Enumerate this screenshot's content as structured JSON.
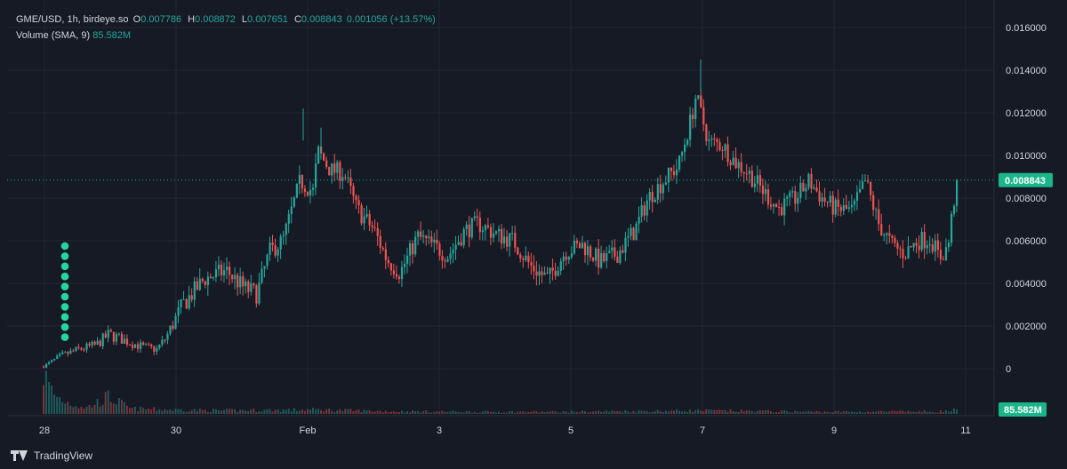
{
  "legend": {
    "symbol": "GME/USD, 1h, birdeye.so",
    "open_key": "O",
    "open": "0.007786",
    "high_key": "H",
    "high": "0.008872",
    "low_key": "L",
    "low": "0.007651",
    "close_key": "C",
    "close": "0.008843",
    "change": "0.001056 (+13.57%)",
    "volume_label": "Volume (SMA, 9)",
    "volume_value": "85.582M"
  },
  "footer": {
    "brand": "TradingView"
  },
  "colors": {
    "background": "#161a25",
    "up": "#26a69a",
    "down": "#ef5350",
    "grid": "#242733",
    "text": "#d1d4dc",
    "price_label": "#1bb58a"
  },
  "chart_data": {
    "type": "candlestick",
    "symbol": "GME/USD",
    "interval": "1h",
    "y_ticks": [
      0,
      0.002,
      0.004,
      0.006,
      0.008,
      0.01,
      0.012,
      0.014,
      0.016
    ],
    "y_tick_labels": [
      "0",
      "0.002000",
      "0.004000",
      "0.006000",
      "0.008000",
      "0.010000",
      "0.012000",
      "0.014000",
      "0.016000"
    ],
    "ylim": [
      -0.00075,
      0.0168
    ],
    "x_range_days": [
      0,
      14.7
    ],
    "x_tick_days": [
      0,
      2,
      4,
      6,
      8,
      10,
      12,
      14
    ],
    "x_tick_labels": [
      "28",
      "30",
      "Feb",
      "3",
      "5",
      "7",
      "9",
      "11"
    ],
    "last_price": 0.008843,
    "last_price_label": "0.008843",
    "volume_label": "85.582M",
    "price_path": [
      [
        0.0,
        0.0001
      ],
      [
        0.4,
        0.0006
      ],
      [
        0.8,
        0.0009
      ],
      [
        1.2,
        0.0011
      ],
      [
        1.5,
        0.0016
      ],
      [
        1.9,
        0.0013
      ],
      [
        2.3,
        0.001
      ],
      [
        2.6,
        0.0009
      ],
      [
        2.8,
        0.0014
      ],
      [
        3.2,
        0.003
      ],
      [
        3.7,
        0.0042
      ],
      [
        4.2,
        0.0046
      ],
      [
        4.6,
        0.0038
      ],
      [
        4.9,
        0.0035
      ],
      [
        5.2,
        0.0055
      ],
      [
        5.5,
        0.006
      ],
      [
        5.9,
        0.0088
      ],
      [
        6.2,
        0.0083
      ],
      [
        6.3,
        0.0102
      ],
      [
        6.6,
        0.0093
      ],
      [
        6.9,
        0.0092
      ],
      [
        7.2,
        0.0075
      ],
      [
        7.6,
        0.0065
      ],
      [
        7.9,
        0.0051
      ],
      [
        8.2,
        0.0045
      ],
      [
        8.6,
        0.0062
      ],
      [
        9.0,
        0.0057
      ],
      [
        9.3,
        0.0053
      ],
      [
        9.7,
        0.0065
      ],
      [
        10.0,
        0.0068
      ],
      [
        10.4,
        0.0063
      ],
      [
        10.8,
        0.006
      ],
      [
        11.2,
        0.0048
      ],
      [
        11.6,
        0.0042
      ],
      [
        12.0,
        0.0055
      ],
      [
        12.4,
        0.0058
      ],
      [
        12.8,
        0.005
      ],
      [
        13.2,
        0.0054
      ],
      [
        13.6,
        0.0065
      ],
      [
        13.9,
        0.008
      ],
      [
        14.3,
        0.0089
      ],
      [
        14.6,
        0.0095
      ],
      [
        14.9,
        0.0118
      ],
      [
        15.0,
        0.0128
      ],
      [
        15.3,
        0.0106
      ],
      [
        15.6,
        0.0105
      ],
      [
        15.9,
        0.0097
      ],
      [
        16.2,
        0.0092
      ],
      [
        16.6,
        0.0082
      ],
      [
        16.9,
        0.0075
      ],
      [
        17.3,
        0.008
      ],
      [
        17.6,
        0.0088
      ],
      [
        17.9,
        0.008
      ],
      [
        18.2,
        0.0075
      ],
      [
        18.6,
        0.0074
      ],
      [
        18.9,
        0.0088
      ],
      [
        19.2,
        0.0068
      ],
      [
        19.5,
        0.0058
      ],
      [
        19.8,
        0.0054
      ],
      [
        20.1,
        0.006
      ],
      [
        20.4,
        0.0061
      ],
      [
        20.6,
        0.0052
      ],
      [
        20.8,
        0.0057
      ],
      [
        20.9,
        0.0074
      ],
      [
        21.0,
        0.0088
      ]
    ],
    "volume_path": [
      [
        0.0,
        0.95
      ],
      [
        0.15,
        0.6
      ],
      [
        0.3,
        0.4
      ],
      [
        0.6,
        0.25
      ],
      [
        1.0,
        0.15
      ],
      [
        1.5,
        0.4
      ],
      [
        2.0,
        0.12
      ],
      [
        4.0,
        0.08
      ],
      [
        6.3,
        0.1
      ],
      [
        8.0,
        0.06
      ],
      [
        10.0,
        0.05
      ],
      [
        12.0,
        0.05
      ],
      [
        15.0,
        0.08
      ],
      [
        18.0,
        0.05
      ],
      [
        20.8,
        0.06
      ],
      [
        21.0,
        0.1
      ]
    ]
  }
}
